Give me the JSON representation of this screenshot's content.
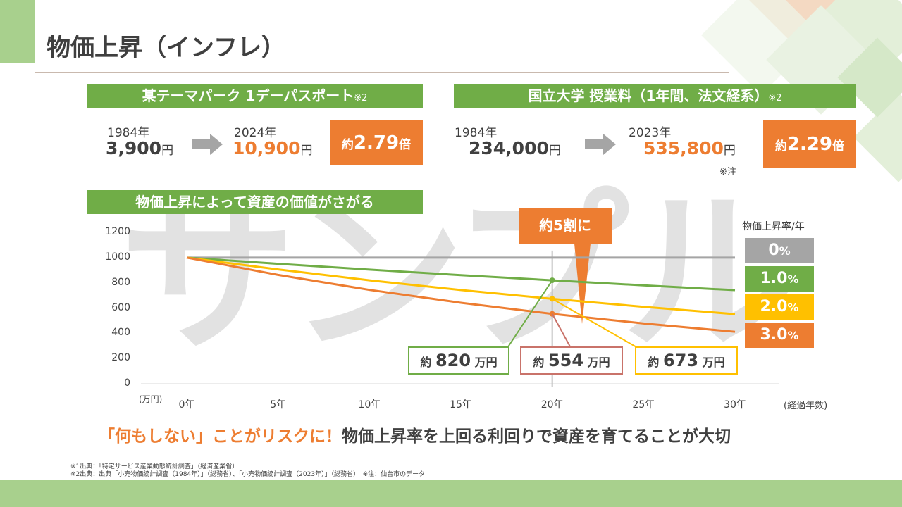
{
  "title": "物価上昇（インフレ）",
  "watermark": "サンプル",
  "theme_park": {
    "heading": "某テーマパーク 1デーパスポート",
    "heading_note": "※2",
    "from_year": "1984年",
    "from_value": "3,900",
    "to_year": "2024年",
    "to_value": "10,900",
    "unit": "円",
    "multiplier_prefix": "約",
    "multiplier": "2.79",
    "multiplier_suffix": "倍"
  },
  "university": {
    "heading": "国立大学 授業料（1年間、法文経系）",
    "heading_note": "※2",
    "from_year": "1984年",
    "from_value": "234,000",
    "to_year": "2023年",
    "to_value": "535,800",
    "unit": "円",
    "note": "※注",
    "multiplier_prefix": "約",
    "multiplier": "2.29",
    "multiplier_suffix": "倍"
  },
  "chart_section": {
    "heading": "物価上昇によって資産の価値がさがる",
    "callout_top": "約5割に",
    "rate_header": "物価上昇率/年",
    "y_unit": "(万円)",
    "x_unit": "(経過年数)"
  },
  "chart_data": {
    "type": "line",
    "x": [
      0,
      5,
      10,
      15,
      20,
      25,
      30
    ],
    "x_tick_labels": [
      "0年",
      "5年",
      "10年",
      "15年",
      "20年",
      "25年",
      "30年"
    ],
    "y_ticks": [
      0,
      200,
      400,
      600,
      800,
      1000,
      1200
    ],
    "ylim": [
      0,
      1200
    ],
    "xlim": [
      0,
      30
    ],
    "series": [
      {
        "name": "0",
        "color": "#a5a5a5",
        "values": [
          1000,
          1000,
          1000,
          1000,
          1000,
          1000,
          1000
        ]
      },
      {
        "name": "1.0",
        "color": "#70ad47",
        "values": [
          1000,
          951,
          905,
          861,
          820,
          780,
          742
        ]
      },
      {
        "name": "2.0",
        "color": "#ffc000",
        "values": [
          1000,
          906,
          820,
          743,
          673,
          610,
          552
        ]
      },
      {
        "name": "3.0",
        "color": "#ed7d31",
        "values": [
          1000,
          863,
          744,
          642,
          554,
          478,
          412
        ]
      }
    ],
    "rate_labels": [
      {
        "value": "0",
        "suffix": "%",
        "color": "#a5a5a5"
      },
      {
        "value": "1.0",
        "suffix": "%",
        "color": "#70ad47"
      },
      {
        "value": "2.0",
        "suffix": "%",
        "color": "#ffc000"
      },
      {
        "value": "3.0",
        "suffix": "%",
        "color": "#ed7d31"
      }
    ],
    "annotations": [
      {
        "prefix": "約",
        "value": "820",
        "unit": "万円",
        "color": "#70ad47"
      },
      {
        "prefix": "約",
        "value": "554",
        "unit": "万円",
        "color": "#c9736a"
      },
      {
        "prefix": "約",
        "value": "673",
        "unit": "万円",
        "color": "#ffc000"
      }
    ]
  },
  "bottom_message": {
    "highlight": "「何もしない」ことがリスクに！",
    "rest": "物価上昇率を上回る利回りで資産を育てることが大切"
  },
  "footnotes": [
    "※1出典：「特定サービス産業動態統計調査」（経済産業省）",
    "※2出典：出典「小売物価統計調査（1984年）」（総務省）、「小売物価統計調査（2023年）」（総務省）　※注：仙台市のデータ"
  ]
}
